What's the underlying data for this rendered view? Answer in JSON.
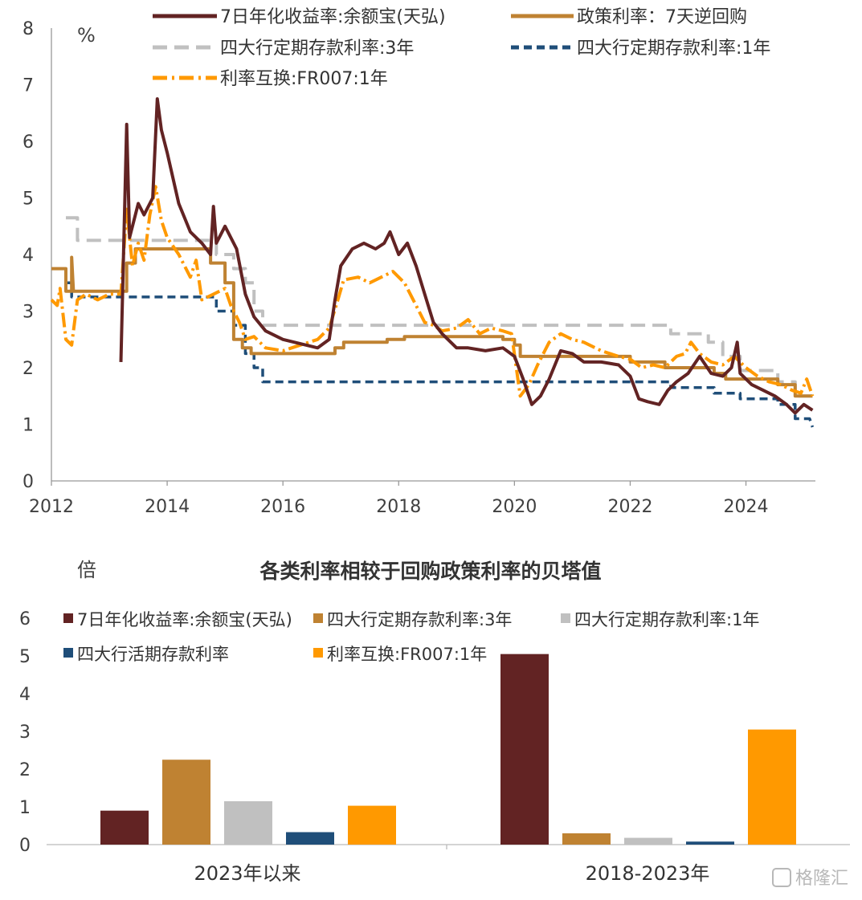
{
  "watermark": "格隆汇",
  "top_legend": [
    "7日年化收益率:余额宝(天弘)",
    "政策利率：7天逆回购",
    "四大行定期存款利率:3年",
    "四大行定期存款利率:1年",
    "利率互换:FR007:1年"
  ],
  "bottom_legend": [
    "7日年化收益率:余额宝(天弘)",
    "四大行定期存款利率:3年",
    "四大行定期存款利率:1年",
    "四大行活期存款利率",
    "利率互换:FR007:1年"
  ],
  "colors": {
    "yuebao": "#622323",
    "policy": "#bf8232",
    "dep3y": "#c0c0c0",
    "dep1y": "#1f4e79",
    "fr007": "#ff9900"
  },
  "chart_data": [
    {
      "type": "line",
      "title": "",
      "ylabel": "%",
      "xlabel": "",
      "ylim": [
        0,
        8
      ],
      "xlim": [
        2012,
        2025.2
      ],
      "yticks": [
        "0",
        "1",
        "2",
        "3",
        "4",
        "5",
        "6",
        "7",
        "8"
      ],
      "xticks": [
        "2012",
        "2014",
        "2016",
        "2018",
        "2020",
        "2022",
        "2024"
      ],
      "legend_position": "top",
      "series": [
        {
          "name": "7日年化收益率:余额宝(天弘)",
          "style": "solid",
          "points": [
            [
              2013.2,
              2.1
            ],
            [
              2013.3,
              6.3
            ],
            [
              2013.35,
              4.3
            ],
            [
              2013.5,
              4.9
            ],
            [
              2013.6,
              4.7
            ],
            [
              2013.75,
              5.0
            ],
            [
              2013.83,
              6.75
            ],
            [
              2013.9,
              6.2
            ],
            [
              2014.0,
              5.8
            ],
            [
              2014.2,
              4.9
            ],
            [
              2014.4,
              4.4
            ],
            [
              2014.6,
              4.2
            ],
            [
              2014.75,
              4.0
            ],
            [
              2014.8,
              4.85
            ],
            [
              2014.85,
              4.2
            ],
            [
              2015.0,
              4.5
            ],
            [
              2015.2,
              4.1
            ],
            [
              2015.35,
              3.3
            ],
            [
              2015.5,
              2.9
            ],
            [
              2015.7,
              2.65
            ],
            [
              2016.0,
              2.5
            ],
            [
              2016.4,
              2.4
            ],
            [
              2016.6,
              2.35
            ],
            [
              2016.8,
              2.5
            ],
            [
              2016.9,
              3.2
            ],
            [
              2017.0,
              3.8
            ],
            [
              2017.2,
              4.1
            ],
            [
              2017.4,
              4.2
            ],
            [
              2017.6,
              4.1
            ],
            [
              2017.75,
              4.2
            ],
            [
              2017.85,
              4.4
            ],
            [
              2018.0,
              4.0
            ],
            [
              2018.15,
              4.2
            ],
            [
              2018.3,
              3.8
            ],
            [
              2018.45,
              3.3
            ],
            [
              2018.6,
              2.8
            ],
            [
              2018.75,
              2.6
            ],
            [
              2019.0,
              2.35
            ],
            [
              2019.2,
              2.35
            ],
            [
              2019.5,
              2.3
            ],
            [
              2019.8,
              2.35
            ],
            [
              2020.0,
              2.2
            ],
            [
              2020.15,
              1.8
            ],
            [
              2020.3,
              1.35
            ],
            [
              2020.45,
              1.5
            ],
            [
              2020.6,
              1.8
            ],
            [
              2020.8,
              2.3
            ],
            [
              2021.0,
              2.25
            ],
            [
              2021.2,
              2.1
            ],
            [
              2021.5,
              2.1
            ],
            [
              2021.8,
              2.05
            ],
            [
              2022.0,
              1.85
            ],
            [
              2022.15,
              1.45
            ],
            [
              2022.3,
              1.4
            ],
            [
              2022.5,
              1.35
            ],
            [
              2022.65,
              1.6
            ],
            [
              2022.8,
              1.75
            ],
            [
              2023.0,
              1.9
            ],
            [
              2023.2,
              2.2
            ],
            [
              2023.4,
              1.9
            ],
            [
              2023.6,
              1.85
            ],
            [
              2023.75,
              2.0
            ],
            [
              2023.85,
              2.45
            ],
            [
              2023.9,
              1.9
            ],
            [
              2024.1,
              1.7
            ],
            [
              2024.3,
              1.6
            ],
            [
              2024.5,
              1.5
            ],
            [
              2024.7,
              1.35
            ],
            [
              2024.85,
              1.2
            ],
            [
              2025.0,
              1.35
            ],
            [
              2025.15,
              1.25
            ]
          ]
        },
        {
          "name": "政策利率：7天逆回购",
          "style": "solid",
          "points": [
            [
              2012.0,
              3.75
            ],
            [
              2012.25,
              3.75
            ],
            [
              2012.25,
              3.35
            ],
            [
              2012.35,
              3.35
            ],
            [
              2012.35,
              3.95
            ],
            [
              2012.38,
              3.35
            ],
            [
              2013.3,
              3.35
            ],
            [
              2013.3,
              3.85
            ],
            [
              2013.45,
              3.85
            ],
            [
              2013.45,
              4.1
            ],
            [
              2014.75,
              4.1
            ],
            [
              2014.75,
              3.85
            ],
            [
              2015.0,
              3.85
            ],
            [
              2015.0,
              3.5
            ],
            [
              2015.15,
              3.5
            ],
            [
              2015.15,
              2.5
            ],
            [
              2015.3,
              2.5
            ],
            [
              2015.3,
              2.35
            ],
            [
              2015.45,
              2.35
            ],
            [
              2015.45,
              2.25
            ],
            [
              2016.9,
              2.25
            ],
            [
              2016.9,
              2.35
            ],
            [
              2017.05,
              2.35
            ],
            [
              2017.05,
              2.45
            ],
            [
              2017.8,
              2.45
            ],
            [
              2017.8,
              2.5
            ],
            [
              2018.1,
              2.5
            ],
            [
              2018.1,
              2.55
            ],
            [
              2019.8,
              2.55
            ],
            [
              2019.8,
              2.5
            ],
            [
              2020.0,
              2.5
            ],
            [
              2020.0,
              2.4
            ],
            [
              2020.1,
              2.4
            ],
            [
              2020.1,
              2.2
            ],
            [
              2022.0,
              2.2
            ],
            [
              2022.0,
              2.1
            ],
            [
              2022.6,
              2.1
            ],
            [
              2022.6,
              2.0
            ],
            [
              2023.45,
              2.0
            ],
            [
              2023.45,
              1.9
            ],
            [
              2023.65,
              1.9
            ],
            [
              2023.65,
              1.8
            ],
            [
              2024.55,
              1.8
            ],
            [
              2024.55,
              1.7
            ],
            [
              2024.85,
              1.7
            ],
            [
              2024.85,
              1.5
            ],
            [
              2025.15,
              1.5
            ]
          ]
        },
        {
          "name": "四大行定期存款利率:3年",
          "style": "dash",
          "points": [
            [
              2012.25,
              4.65
            ],
            [
              2012.45,
              4.65
            ],
            [
              2012.45,
              4.25
            ],
            [
              2014.85,
              4.25
            ],
            [
              2014.85,
              4.0
            ],
            [
              2015.15,
              4.0
            ],
            [
              2015.15,
              3.75
            ],
            [
              2015.35,
              3.75
            ],
            [
              2015.35,
              3.5
            ],
            [
              2015.5,
              3.5
            ],
            [
              2015.5,
              3.0
            ],
            [
              2015.65,
              3.0
            ],
            [
              2015.65,
              2.75
            ],
            [
              2022.7,
              2.75
            ],
            [
              2022.7,
              2.6
            ],
            [
              2023.35,
              2.6
            ],
            [
              2023.35,
              2.45
            ],
            [
              2023.6,
              2.45
            ],
            [
              2023.6,
              2.2
            ],
            [
              2023.9,
              2.2
            ],
            [
              2023.9,
              1.95
            ],
            [
              2024.55,
              1.95
            ],
            [
              2024.55,
              1.75
            ],
            [
              2024.85,
              1.75
            ],
            [
              2024.85,
              1.5
            ],
            [
              2025.15,
              1.5
            ]
          ]
        },
        {
          "name": "四大行定期存款利率:1年",
          "style": "dash",
          "points": [
            [
              2012.25,
              3.5
            ],
            [
              2012.35,
              3.5
            ],
            [
              2012.35,
              3.25
            ],
            [
              2014.85,
              3.25
            ],
            [
              2014.85,
              3.0
            ],
            [
              2015.15,
              3.0
            ],
            [
              2015.15,
              2.75
            ],
            [
              2015.35,
              2.75
            ],
            [
              2015.35,
              2.25
            ],
            [
              2015.5,
              2.25
            ],
            [
              2015.5,
              2.0
            ],
            [
              2015.65,
              2.0
            ],
            [
              2015.65,
              1.75
            ],
            [
              2022.7,
              1.75
            ],
            [
              2022.7,
              1.65
            ],
            [
              2023.45,
              1.65
            ],
            [
              2023.45,
              1.55
            ],
            [
              2023.9,
              1.55
            ],
            [
              2023.9,
              1.45
            ],
            [
              2024.55,
              1.45
            ],
            [
              2024.55,
              1.35
            ],
            [
              2024.85,
              1.35
            ],
            [
              2024.85,
              1.1
            ],
            [
              2025.1,
              1.1
            ],
            [
              2025.15,
              0.95
            ]
          ]
        },
        {
          "name": "利率互换:FR007:1年",
          "style": "dashdot",
          "points": [
            [
              2012.0,
              3.2
            ],
            [
              2012.1,
              3.1
            ],
            [
              2012.15,
              3.4
            ],
            [
              2012.25,
              2.5
            ],
            [
              2012.35,
              2.4
            ],
            [
              2012.45,
              3.2
            ],
            [
              2012.6,
              3.3
            ],
            [
              2012.8,
              3.2
            ],
            [
              2013.0,
              3.3
            ],
            [
              2013.2,
              3.3
            ],
            [
              2013.3,
              4.8
            ],
            [
              2013.4,
              3.8
            ],
            [
              2013.5,
              4.2
            ],
            [
              2013.6,
              3.9
            ],
            [
              2013.7,
              4.7
            ],
            [
              2013.8,
              5.2
            ],
            [
              2013.9,
              4.6
            ],
            [
              2014.0,
              4.3
            ],
            [
              2014.2,
              4.0
            ],
            [
              2014.4,
              3.6
            ],
            [
              2014.5,
              3.9
            ],
            [
              2014.6,
              3.2
            ],
            [
              2014.8,
              3.3
            ],
            [
              2015.0,
              3.4
            ],
            [
              2015.1,
              3.1
            ],
            [
              2015.25,
              2.8
            ],
            [
              2015.35,
              2.5
            ],
            [
              2015.5,
              2.55
            ],
            [
              2015.7,
              2.35
            ],
            [
              2016.0,
              2.3
            ],
            [
              2016.3,
              2.4
            ],
            [
              2016.6,
              2.5
            ],
            [
              2016.8,
              2.7
            ],
            [
              2016.95,
              3.2
            ],
            [
              2017.05,
              3.55
            ],
            [
              2017.3,
              3.6
            ],
            [
              2017.5,
              3.5
            ],
            [
              2017.7,
              3.6
            ],
            [
              2017.9,
              3.7
            ],
            [
              2018.1,
              3.5
            ],
            [
              2018.3,
              3.1
            ],
            [
              2018.45,
              2.8
            ],
            [
              2018.6,
              2.75
            ],
            [
              2018.75,
              2.65
            ],
            [
              2019.0,
              2.7
            ],
            [
              2019.2,
              2.85
            ],
            [
              2019.4,
              2.6
            ],
            [
              2019.6,
              2.7
            ],
            [
              2019.8,
              2.65
            ],
            [
              2019.95,
              2.6
            ],
            [
              2020.1,
              1.5
            ],
            [
              2020.25,
              1.7
            ],
            [
              2020.4,
              2.05
            ],
            [
              2020.6,
              2.45
            ],
            [
              2020.8,
              2.6
            ],
            [
              2021.0,
              2.5
            ],
            [
              2021.2,
              2.45
            ],
            [
              2021.5,
              2.3
            ],
            [
              2021.8,
              2.2
            ],
            [
              2022.0,
              2.15
            ],
            [
              2022.2,
              2.0
            ],
            [
              2022.4,
              2.05
            ],
            [
              2022.6,
              2.0
            ],
            [
              2022.8,
              2.2
            ],
            [
              2022.95,
              2.25
            ],
            [
              2023.05,
              2.45
            ],
            [
              2023.2,
              2.25
            ],
            [
              2023.4,
              2.1
            ],
            [
              2023.6,
              2.05
            ],
            [
              2023.8,
              2.2
            ],
            [
              2024.0,
              2.0
            ],
            [
              2024.2,
              1.85
            ],
            [
              2024.4,
              1.75
            ],
            [
              2024.6,
              1.7
            ],
            [
              2024.8,
              1.6
            ],
            [
              2024.95,
              1.55
            ],
            [
              2025.05,
              1.8
            ],
            [
              2025.15,
              1.5
            ]
          ]
        }
      ]
    },
    {
      "type": "bar",
      "title": "各类利率相较于回购政策利率的贝塔值",
      "ylabel": "倍",
      "xlabel": "",
      "ylim": [
        0,
        6
      ],
      "yticks": [
        "0",
        "1",
        "2",
        "3",
        "4",
        "5",
        "6"
      ],
      "categories": [
        "2023年以来",
        "2018-2023年"
      ],
      "legend_position": "top",
      "series": [
        {
          "name": "7日年化收益率:余额宝(天弘)",
          "values": [
            0.9,
            5.05
          ]
        },
        {
          "name": "四大行定期存款利率:3年",
          "values": [
            2.25,
            0.3
          ]
        },
        {
          "name": "四大行定期存款利率:1年",
          "values": [
            1.15,
            0.18
          ]
        },
        {
          "name": "四大行活期存款利率",
          "values": [
            0.33,
            0.08
          ]
        },
        {
          "name": "利率互换:FR007:1年",
          "values": [
            1.03,
            3.05
          ]
        }
      ]
    }
  ]
}
